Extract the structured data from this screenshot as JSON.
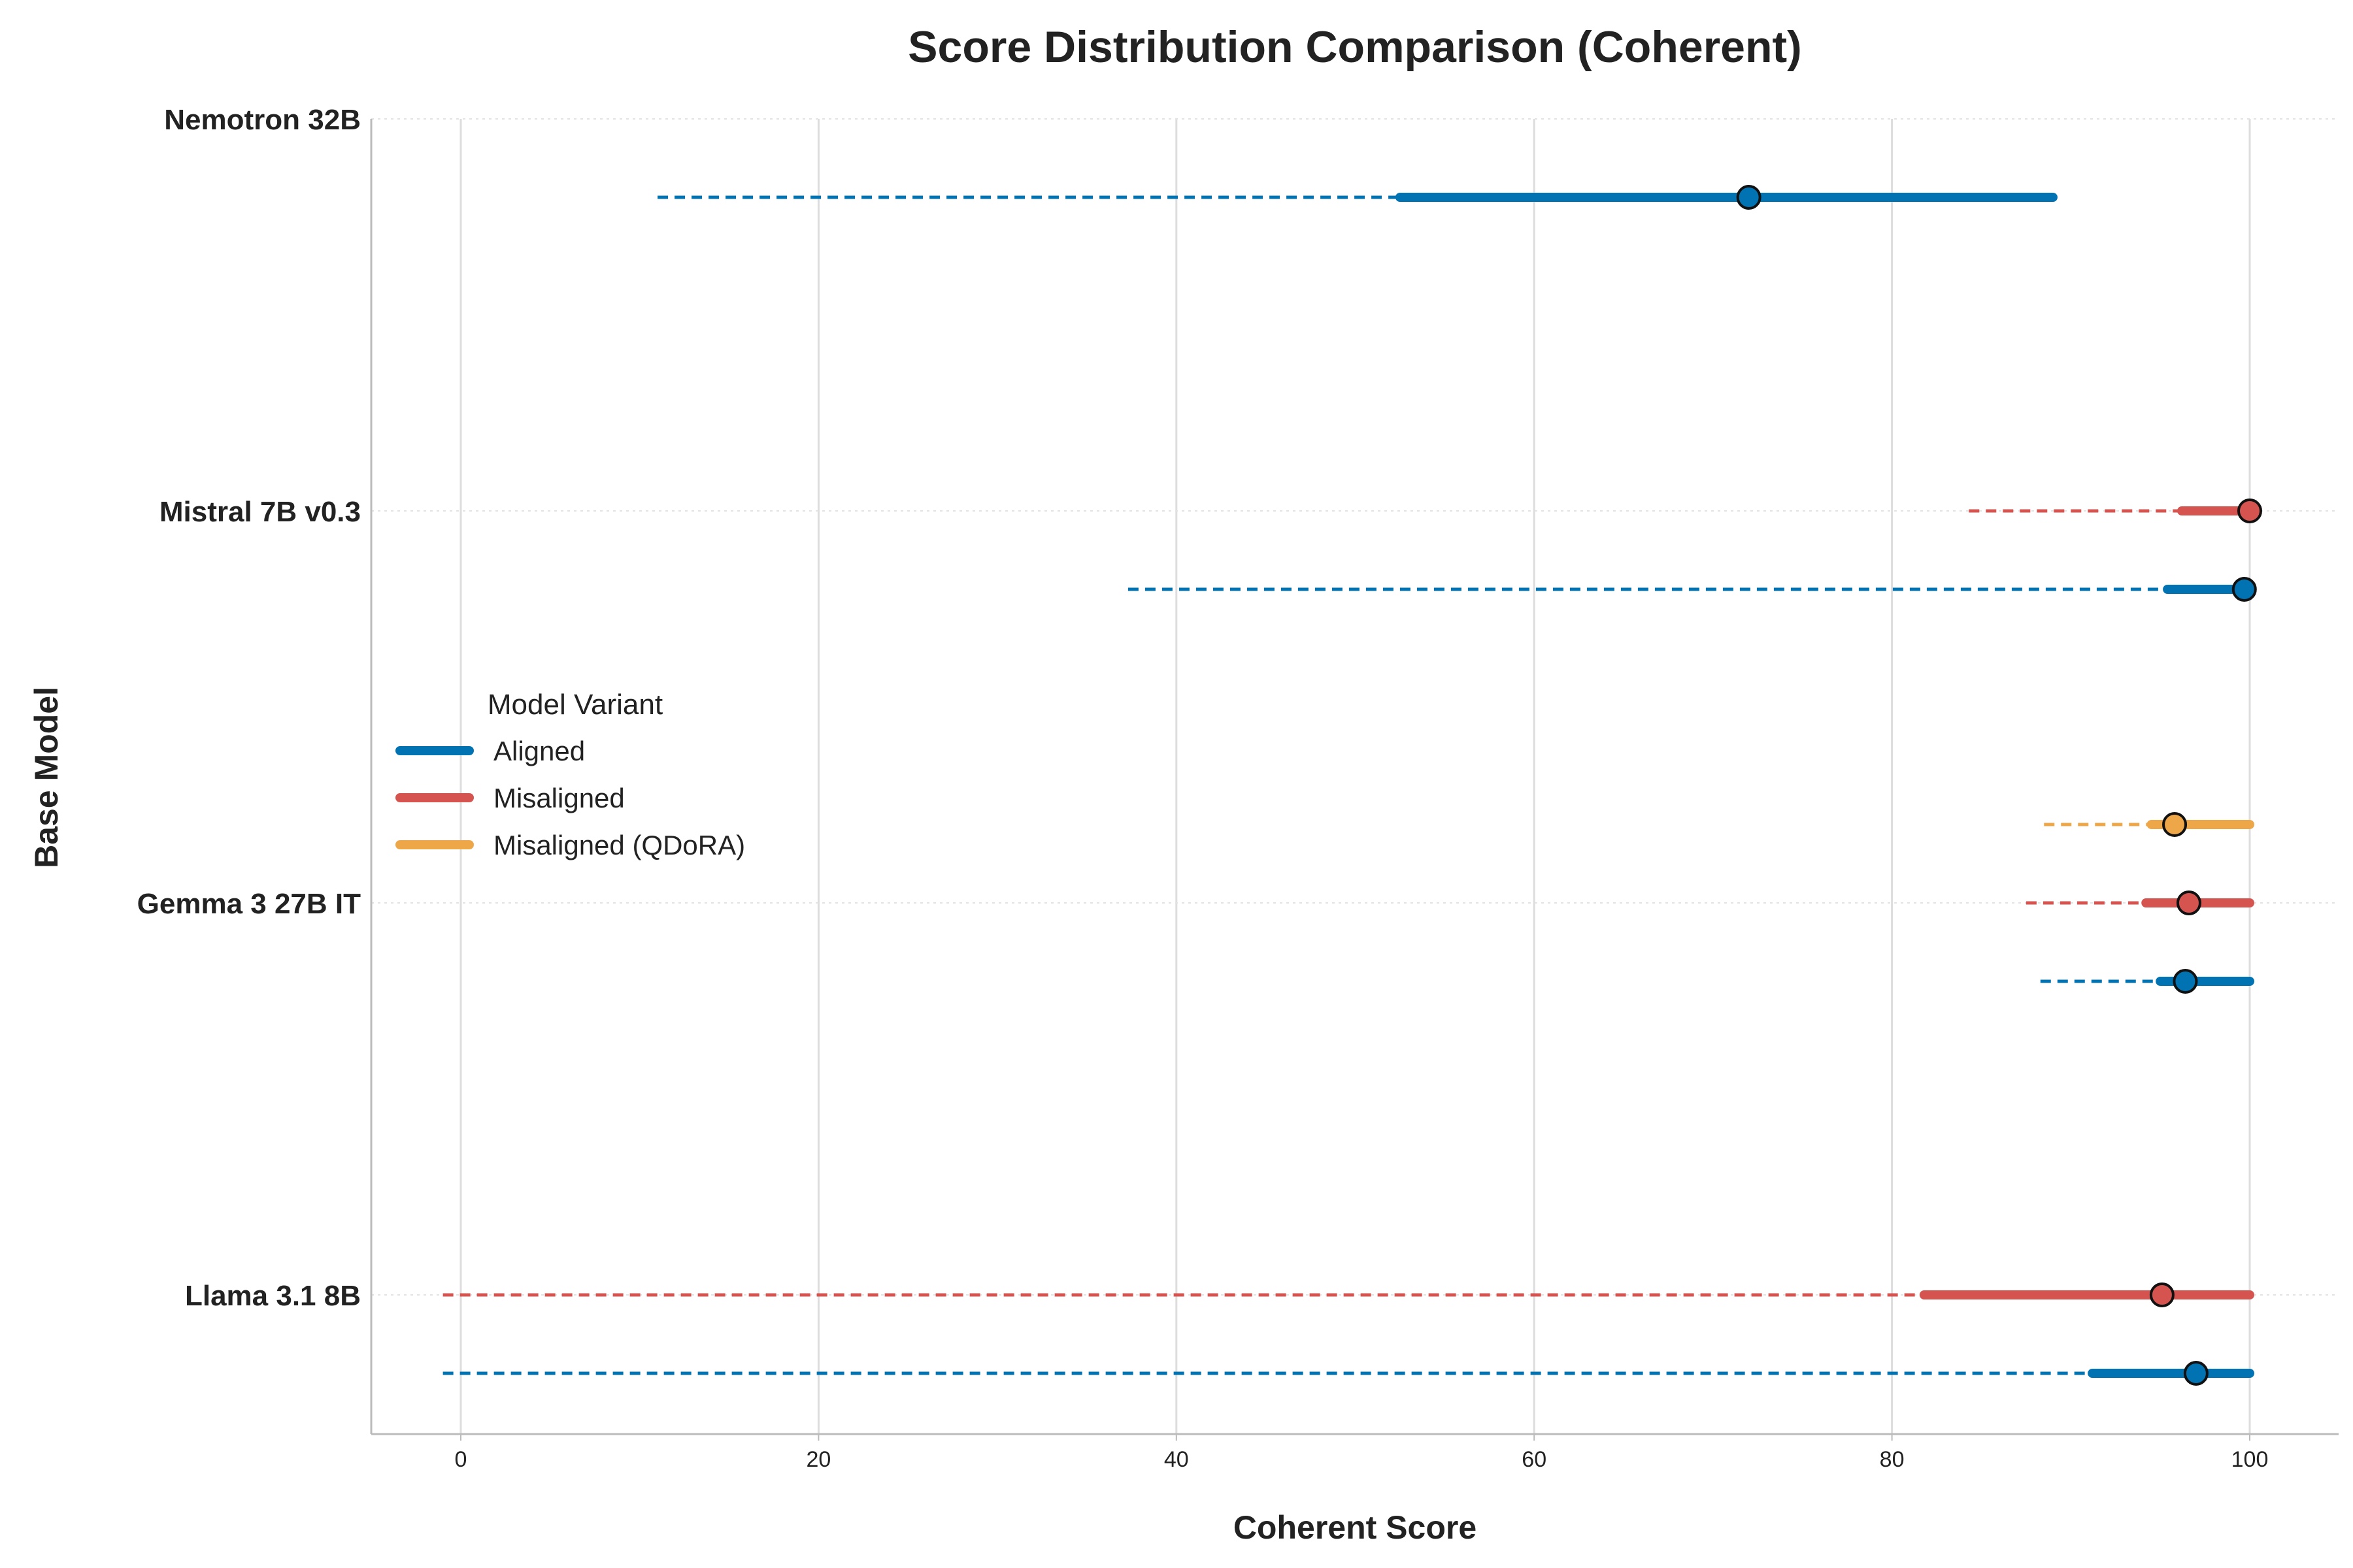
{
  "chart_data": {
    "type": "range-dot",
    "title": "Score Distribution Comparison (Coherent)",
    "xlabel": "Coherent Score",
    "ylabel": "Base Model",
    "xlim": [
      -5,
      105
    ],
    "xticks": [
      0,
      20,
      40,
      60,
      80,
      100
    ],
    "grid": "vertical solid, horizontal dotted",
    "categories": [
      "Nemotron 32B",
      "Mistral 7B v0.3",
      "Gemma 3 27B IT",
      "Llama 3.1 8B"
    ],
    "legend": {
      "title": "Model Variant",
      "placement": "center-left",
      "entries": [
        {
          "name": "Aligned",
          "color": "#0173b2"
        },
        {
          "name": "Misaligned",
          "color": "#d55450"
        },
        {
          "name": "Misaligned (QDoRA)",
          "color": "#eea748"
        }
      ]
    },
    "series": [
      {
        "model": "Nemotron 32B",
        "variant": "Aligned",
        "row_offset": 1,
        "whisker": [
          11,
          52.5
        ],
        "iqr": [
          52.5,
          89
        ],
        "median": 72
      },
      {
        "model": "Mistral 7B v0.3",
        "variant": "Misaligned",
        "row_offset": 0,
        "whisker": [
          84.3,
          96.2
        ],
        "iqr": [
          96.2,
          100
        ],
        "median": 100
      },
      {
        "model": "Mistral 7B v0.3",
        "variant": "Aligned",
        "row_offset": 1,
        "whisker": [
          37.3,
          95.4
        ],
        "iqr": [
          95.4,
          100
        ],
        "median": 99.7
      },
      {
        "model": "Gemma 3 27B IT",
        "variant": "Misaligned (QDoRA)",
        "row_offset": -1,
        "whisker": [
          88.5,
          94.5
        ],
        "iqr": [
          94.5,
          100
        ],
        "median": 95.8
      },
      {
        "model": "Gemma 3 27B IT",
        "variant": "Misaligned",
        "row_offset": 0,
        "whisker": [
          87.5,
          94.2
        ],
        "iqr": [
          94.2,
          100
        ],
        "median": 96.6
      },
      {
        "model": "Gemma 3 27B IT",
        "variant": "Aligned",
        "row_offset": 1,
        "whisker": [
          88.3,
          95
        ],
        "iqr": [
          95,
          100
        ],
        "median": 96.4
      },
      {
        "model": "Llama 3.1 8B",
        "variant": "Misaligned",
        "row_offset": 0,
        "whisker": [
          -1,
          81.8
        ],
        "iqr": [
          81.8,
          100
        ],
        "median": 95.1
      },
      {
        "model": "Llama 3.1 8B",
        "variant": "Aligned",
        "row_offset": 1,
        "whisker": [
          -1,
          91.2
        ],
        "iqr": [
          91.2,
          100
        ],
        "median": 97
      }
    ]
  }
}
